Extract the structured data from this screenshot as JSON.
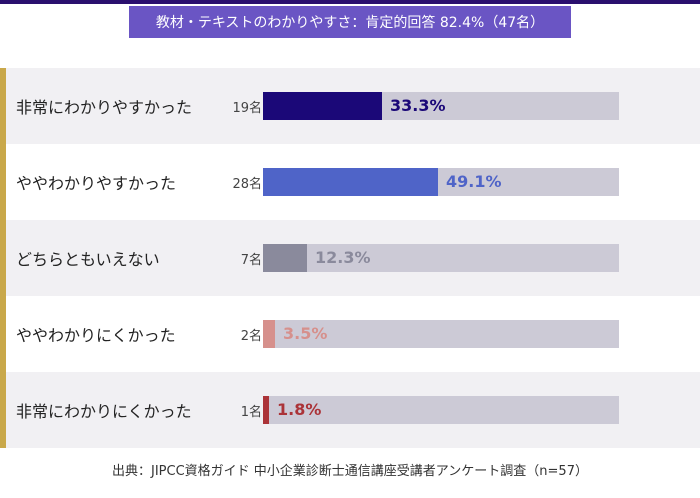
{
  "title": "教材・テキストのわかりやすさ：肯定的回答 82.4%（47名）",
  "source": "出典：JIPCC資格ガイド 中小企業診断士通信講座受講者アンケート調査（n=57）",
  "chart_data": {
    "type": "bar",
    "orientation": "horizontal",
    "title": "教材・テキストのわかりやすさ：肯定的回答 82.4%（47名）",
    "categories": [
      "非常にわかりやすかった",
      "ややわかりやすかった",
      "どちらともいえない",
      "ややわかりにくかった",
      "非常にわかりにくかった"
    ],
    "counts": [
      "19名",
      "28名",
      "7名",
      "2名",
      "1名"
    ],
    "values": [
      33.3,
      49.1,
      12.3,
      3.5,
      1.8
    ],
    "labels": [
      "33.3%",
      "49.1%",
      "12.3%",
      "3.5%",
      "1.8%"
    ],
    "colors": [
      "#1b0878",
      "#4f64c8",
      "#8a8a9c",
      "#d6908c",
      "#ab3338"
    ],
    "label_colors": [
      "#1b0878",
      "#4f64c8",
      "#8a8a9c",
      "#d6908c",
      "#ab3338"
    ],
    "xlim": [
      0,
      100
    ],
    "grid": false,
    "legend": "none"
  }
}
